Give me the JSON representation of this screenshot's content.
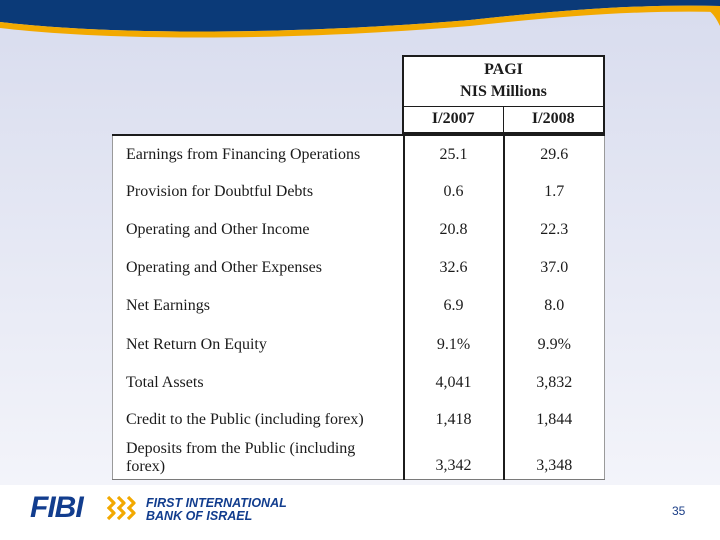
{
  "table": {
    "title": "PAGI",
    "unit": "NIS Millions",
    "columns": [
      "I/2007",
      "I/2008"
    ],
    "rows": [
      {
        "label": "Earnings from Financing Operations",
        "v2007": "25.1",
        "v2008": "29.6"
      },
      {
        "label": "Provision for Doubtful Debts",
        "v2007": "0.6",
        "v2008": "1.7"
      },
      {
        "label": "Operating and Other Income",
        "v2007": "20.8",
        "v2008": "22.3"
      },
      {
        "label": "Operating and Other Expenses",
        "v2007": "32.6",
        "v2008": "37.0"
      },
      {
        "label": "Net Earnings",
        "v2007": "6.9",
        "v2008": "8.0"
      },
      {
        "label": "Net Return On Equity",
        "v2007": "9.1%",
        "v2008": "9.9%"
      },
      {
        "label": "Total Assets",
        "v2007": "4,041",
        "v2008": "3,832"
      },
      {
        "label": "Credit to the Public (including forex)",
        "v2007": "1,418",
        "v2008": "1,844"
      },
      {
        "label": "Deposits from the Public (including forex)",
        "v2007": "3,342",
        "v2008": "3,348"
      }
    ]
  },
  "footer": {
    "logo_text": "FIBI",
    "bank_name_line1": "FIRST INTERNATIONAL",
    "bank_name_line2": "BANK OF ISRAEL",
    "page_number": "35"
  },
  "colors": {
    "brand_blue": "#123d8e",
    "accent_gold": "#f2a900",
    "header_navy": "#0b3a78"
  }
}
